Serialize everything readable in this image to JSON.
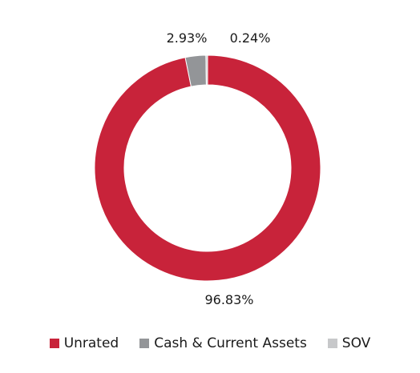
{
  "chart_data": {
    "type": "pie",
    "donut": true,
    "title": "",
    "legend_position": "bottom",
    "slices": [
      {
        "name": "Unrated",
        "value": 96.83,
        "label": "96.83%",
        "color": "#c8233a"
      },
      {
        "name": "Cash & Current Assets",
        "value": 2.93,
        "label": "2.93%",
        "color": "#939598"
      },
      {
        "name": "SOV",
        "value": 0.24,
        "label": "0.24%",
        "color": "#c7c8ca"
      }
    ]
  }
}
